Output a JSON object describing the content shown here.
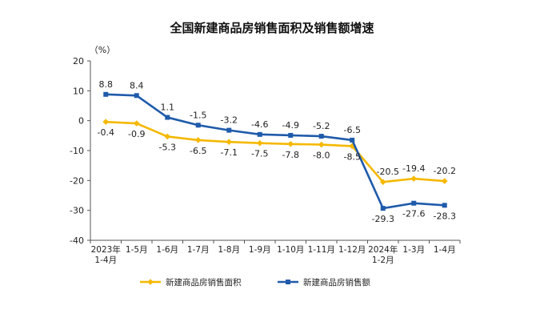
{
  "chart_data": {
    "type": "line",
    "title": "全国新建商品房销售面积及销售额增速",
    "ylabel": "（%）",
    "ylim": [
      -40,
      20
    ],
    "yticks": [
      20,
      10,
      0,
      -10,
      -20,
      -30,
      -40
    ],
    "categories": [
      [
        "2023年",
        "1-4月"
      ],
      [
        "1-5月"
      ],
      [
        "1-6月"
      ],
      [
        "1-7月"
      ],
      [
        "1-8月"
      ],
      [
        "1-9月"
      ],
      [
        "1-10月"
      ],
      [
        "1-11月"
      ],
      [
        "1-12月"
      ],
      [
        "2024年",
        "1-2月"
      ],
      [
        "1-3月"
      ],
      [
        "1-4月"
      ]
    ],
    "grid": false,
    "legend_position": "bottom",
    "series": [
      {
        "name": "新建商品房销售面积",
        "color": "#F5B800",
        "values": [
          -0.4,
          -0.9,
          -5.3,
          -6.5,
          -7.1,
          -7.5,
          -7.8,
          -8.0,
          -8.5,
          -20.5,
          -19.4,
          -20.2
        ],
        "labels": [
          "-0.4",
          "-0.9",
          "-5.3",
          "-6.5",
          "-7.1",
          "-7.5",
          "-7.8",
          "-8.0",
          "-8.5",
          "-20.5",
          "-19.4",
          "-20.2"
        ]
      },
      {
        "name": "新建商品房销售额",
        "color": "#1F5BAA",
        "values": [
          8.8,
          8.4,
          1.1,
          -1.5,
          -3.2,
          -4.6,
          -4.9,
          -5.2,
          -6.5,
          -29.3,
          -27.6,
          -28.3
        ],
        "labels": [
          "8.8",
          "8.4",
          "1.1",
          "-1.5",
          "-3.2",
          "-4.6",
          "-4.9",
          "-5.2",
          "-6.5",
          "-29.3",
          "-27.6",
          "-28.3"
        ]
      }
    ]
  }
}
